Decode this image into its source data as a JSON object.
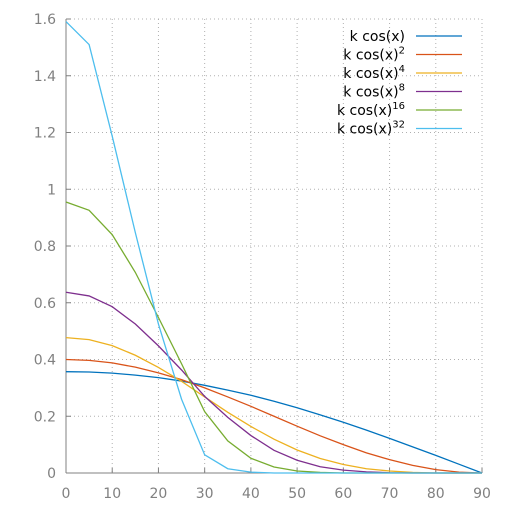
{
  "chart_data": {
    "type": "line",
    "title": "",
    "xlabel": "",
    "ylabel": "",
    "xlim": [
      0,
      90
    ],
    "ylim": [
      0,
      1.6
    ],
    "x_ticks": [
      0,
      10,
      20,
      30,
      40,
      50,
      60,
      70,
      80,
      90
    ],
    "x_tick_labels": [
      "0",
      "10",
      "20",
      "30",
      "40",
      "50",
      "60",
      "70",
      "80",
      "90"
    ],
    "y_ticks": [
      0,
      0.2,
      0.4,
      0.6,
      0.8,
      1,
      1.2,
      1.4,
      1.6
    ],
    "y_tick_labels": [
      "0",
      "0.2",
      "0.4",
      "0.6",
      "0.8",
      "1",
      "1.2",
      "1.4",
      "1.6"
    ],
    "grid": true,
    "legend_position": "top-right",
    "x": [
      0,
      5,
      10,
      15,
      20,
      25,
      30,
      35,
      40,
      45,
      50,
      55,
      60,
      65,
      70,
      75,
      80,
      85,
      90
    ],
    "series": [
      {
        "name_prefix": "k cos(x)",
        "name_superscript": "",
        "color": "#0072bd",
        "values": [
          0.357,
          0.356,
          0.352,
          0.345,
          0.336,
          0.324,
          0.309,
          0.292,
          0.274,
          0.253,
          0.23,
          0.205,
          0.179,
          0.151,
          0.122,
          0.092,
          0.062,
          0.031,
          0.0
        ]
      },
      {
        "name_prefix": "k cos(x)",
        "name_superscript": "2",
        "color": "#d95319",
        "values": [
          0.4,
          0.397,
          0.388,
          0.373,
          0.353,
          0.329,
          0.3,
          0.268,
          0.235,
          0.2,
          0.165,
          0.131,
          0.1,
          0.071,
          0.047,
          0.027,
          0.012,
          0.003,
          0.0
        ]
      },
      {
        "name_prefix": "k cos(x)",
        "name_superscript": "4",
        "color": "#edb120",
        "values": [
          0.477,
          0.47,
          0.449,
          0.415,
          0.372,
          0.323,
          0.268,
          0.214,
          0.164,
          0.119,
          0.081,
          0.051,
          0.03,
          0.015,
          0.007,
          0.002,
          0.0,
          0.0,
          0.0
        ]
      },
      {
        "name_prefix": "k cos(x)",
        "name_superscript": "8",
        "color": "#7e2f8e",
        "values": [
          0.637,
          0.624,
          0.586,
          0.525,
          0.448,
          0.363,
          0.27,
          0.196,
          0.132,
          0.08,
          0.045,
          0.022,
          0.01,
          0.004,
          0.001,
          0.0,
          0.0,
          0.0,
          0.0
        ]
      },
      {
        "name_prefix": "k cos(x)",
        "name_superscript": "16",
        "color": "#77ac30",
        "values": [
          0.955,
          0.926,
          0.84,
          0.707,
          0.548,
          0.385,
          0.216,
          0.113,
          0.052,
          0.021,
          0.007,
          0.002,
          0.0,
          0.0,
          0.0,
          0.0,
          0.0,
          0.0,
          0.0
        ]
      },
      {
        "name_prefix": "k cos(x)",
        "name_superscript": "32",
        "color": "#4dbeee",
        "values": [
          1.591,
          1.51,
          1.187,
          0.847,
          0.525,
          0.26,
          0.064,
          0.015,
          0.003,
          0.0,
          0.0,
          0.0,
          0.0,
          0.0,
          0.0,
          0.0,
          0.0,
          0.0,
          0.0
        ]
      }
    ]
  }
}
